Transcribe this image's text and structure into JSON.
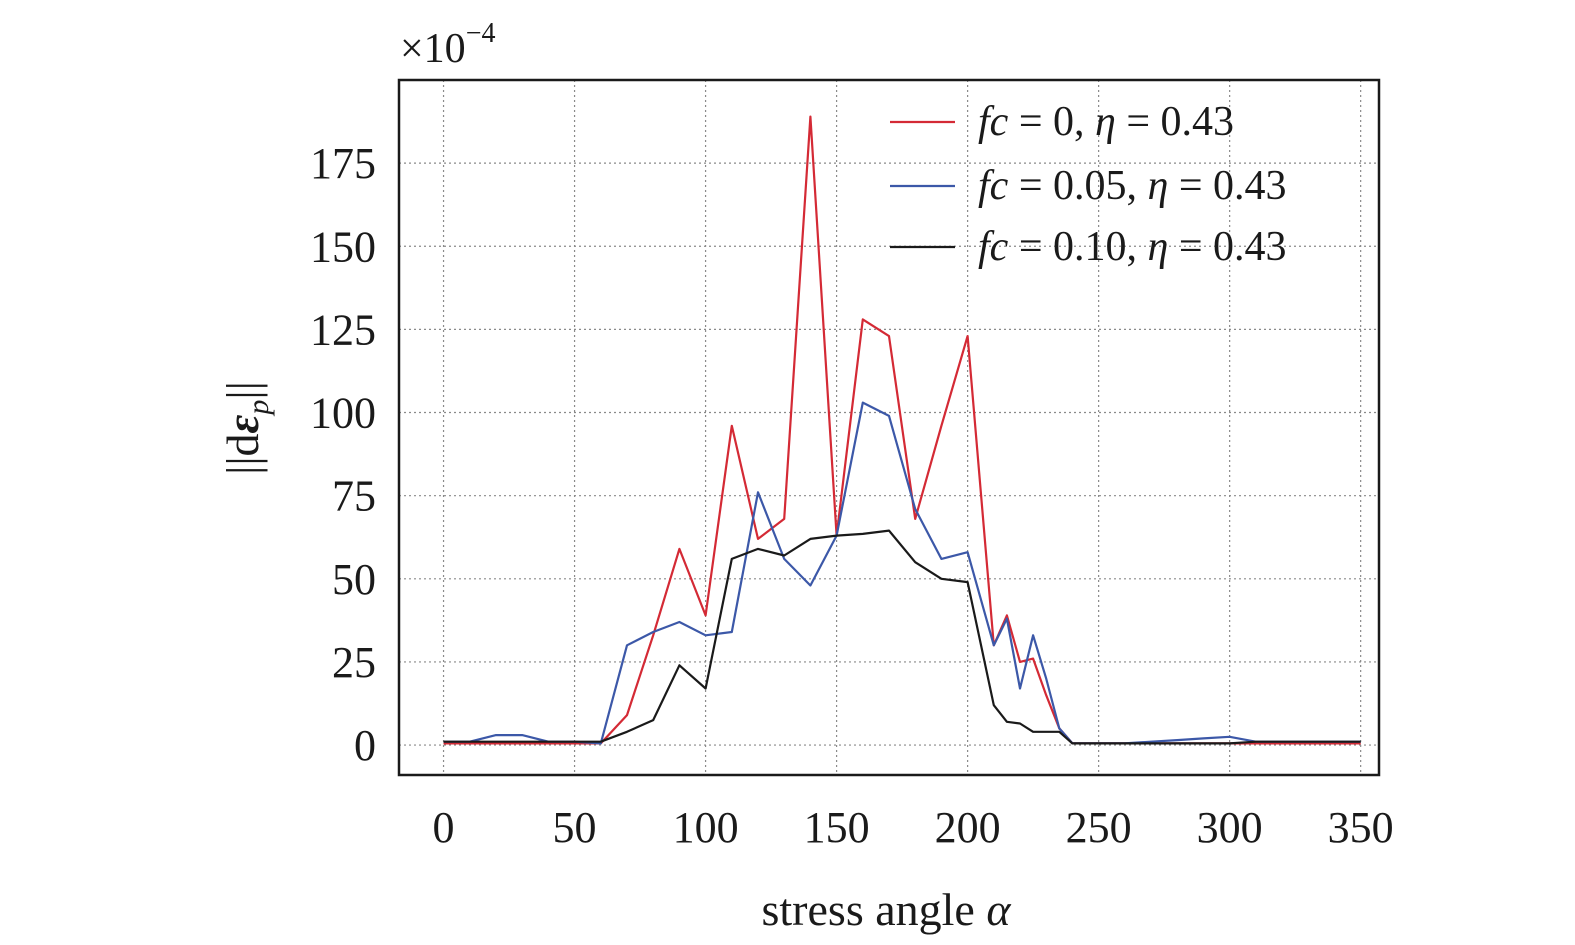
{
  "chart_data": {
    "type": "line",
    "multiplier_label": "×10",
    "multiplier_exponent": "−4",
    "xlabel": "stress angle α",
    "ylabel": "||dε_p||",
    "ylabel_parts": {
      "base": "||d",
      "epsilon": "ε",
      "sub": "p",
      "close": "||"
    },
    "xlim": [
      -17,
      357
    ],
    "ylim": [
      -9,
      200
    ],
    "xticks": [
      0,
      50,
      100,
      150,
      200,
      250,
      300,
      350
    ],
    "yticks": [
      0,
      25,
      50,
      75,
      100,
      125,
      150,
      175
    ],
    "grid": true,
    "legend_position": "top-right",
    "series": [
      {
        "name": "fc = 0, η = 0.43",
        "legend": {
          "var": "fc",
          "val": " = 0, ",
          "eta": "η",
          "rest": " = 0.43"
        },
        "color": "#d42a35",
        "x": [
          0,
          10,
          20,
          30,
          40,
          50,
          60,
          70,
          80,
          90,
          100,
          110,
          120,
          130,
          140,
          150,
          160,
          170,
          180,
          190,
          200,
          210,
          215,
          220,
          225,
          230,
          235,
          240,
          250,
          260,
          270,
          280,
          290,
          300,
          310,
          320,
          330,
          340,
          350
        ],
        "y": [
          0.5,
          0.5,
          0.5,
          0.5,
          0.5,
          0.5,
          0.5,
          9,
          33,
          59,
          39,
          96,
          62,
          68,
          189,
          63,
          128,
          123,
          68,
          96,
          123,
          30,
          39,
          25,
          26,
          15,
          5,
          0.5,
          0.5,
          0.5,
          0.5,
          0.5,
          0.5,
          0.5,
          0.5,
          0.5,
          0.5,
          0.5,
          0.5
        ]
      },
      {
        "name": "fc = 0.05, η = 0.43",
        "legend": {
          "var": "fc",
          "val": " = 0.05, ",
          "eta": "η",
          "rest": " = 0.43"
        },
        "color": "#3c58a8",
        "x": [
          0,
          10,
          20,
          30,
          40,
          50,
          60,
          70,
          80,
          90,
          100,
          110,
          120,
          130,
          140,
          150,
          160,
          170,
          180,
          190,
          200,
          210,
          215,
          220,
          225,
          230,
          235,
          240,
          250,
          260,
          270,
          280,
          290,
          300,
          310,
          320,
          330,
          340,
          350
        ],
        "y": [
          1,
          1,
          3,
          3,
          1,
          1,
          0.5,
          30,
          34,
          37,
          33,
          34,
          76,
          56,
          48,
          63,
          103,
          99,
          71,
          56,
          58,
          30,
          38,
          17,
          33,
          20,
          5,
          0.5,
          0.5,
          0.5,
          1,
          1.5,
          2,
          2.5,
          1,
          1,
          1,
          1,
          1
        ]
      },
      {
        "name": "fc = 0.10, η = 0.43",
        "legend": {
          "var": "fc",
          "val": " = 0.10, ",
          "eta": "η",
          "rest": " = 0.43"
        },
        "color": "#1a1a1a",
        "x": [
          0,
          10,
          20,
          30,
          40,
          50,
          60,
          70,
          80,
          90,
          100,
          110,
          120,
          130,
          140,
          150,
          160,
          170,
          180,
          190,
          200,
          210,
          215,
          220,
          225,
          230,
          235,
          240,
          250,
          260,
          270,
          280,
          290,
          300,
          310,
          320,
          330,
          340,
          350
        ],
        "y": [
          1,
          1,
          1,
          1,
          1,
          1,
          1,
          4,
          7.5,
          24,
          17,
          56,
          59,
          57,
          62,
          63,
          63.5,
          64.5,
          55,
          50,
          49,
          12,
          7,
          6.5,
          4,
          4,
          4,
          0.5,
          0.5,
          0.5,
          0.5,
          0.5,
          0.5,
          0.5,
          1,
          1,
          1,
          1,
          1
        ]
      }
    ]
  }
}
